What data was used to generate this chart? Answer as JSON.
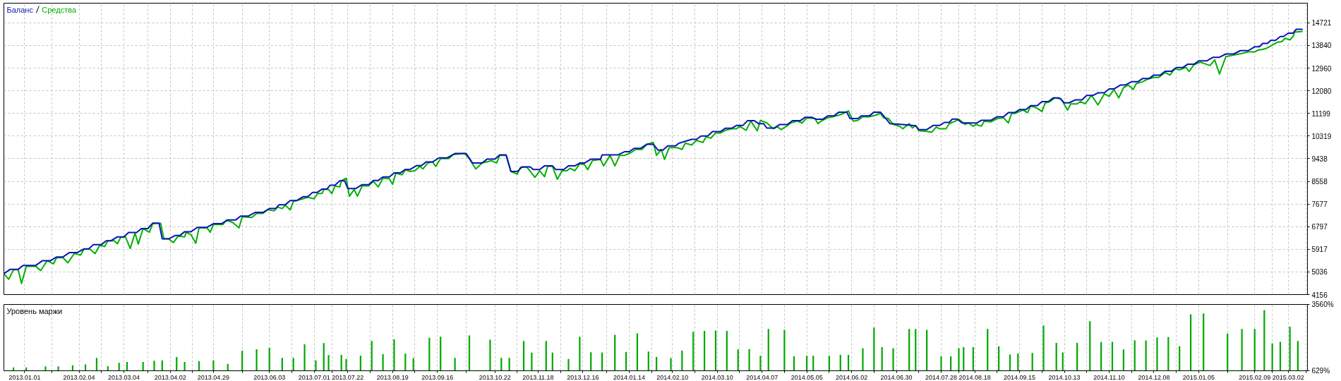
{
  "chart_data": [
    {
      "type": "line",
      "legend": "top left",
      "grid": true,
      "tick_labels": "y",
      "xlim": [
        "2012-12-19",
        "2015-03-14"
      ],
      "ylim": [
        4156,
        15485
      ],
      "yticks": [
        4156,
        5036,
        5917,
        6797,
        7677,
        8558,
        9438,
        10319,
        11199,
        12080,
        12960,
        13840,
        14721
      ],
      "xticks": [
        "2013-01-01",
        "2013-01-18",
        "2013-02-04",
        "2013-02-18",
        "2013-03-04",
        "2013-03-19",
        "2013-04-02",
        "2013-04-16",
        "2013-04-29",
        "2013-05-17",
        "2013-06-03",
        "2013-06-17",
        "2013-07-01",
        "2013-07-12",
        "2013-07-22",
        "2013-08-05",
        "2013-08-19",
        "2013-09-02",
        "2013-09-16",
        "2013-10-04",
        "2013-10-22",
        "2013-11-05",
        "2013-11-18",
        "2013-12-02",
        "2013-12-16",
        "2013-12-31",
        "2014-01-14",
        "2014-01-28",
        "2014-02-10",
        "2014-02-24",
        "2014-03-10",
        "2014-03-24",
        "2014-04-07",
        "2014-04-21",
        "2014-05-05",
        "2014-05-19",
        "2014-06-02",
        "2014-06-16",
        "2014-06-30",
        "2014-07-14",
        "2014-07-28",
        "2014-08-08",
        "2014-08-18",
        "2014-09-01",
        "2014-09-15",
        "2014-09-29",
        "2014-10-13",
        "2014-10-27",
        "2014-11-10",
        "2014-11-24",
        "2014-12-08",
        "2014-12-22",
        "2015-01-05",
        "2015-01-23",
        "2015-02-09",
        "2015-02-20",
        "2015-03-02",
        "2015-03-13"
      ],
      "series": [
        {
          "name": "Средства",
          "color": "#00b000",
          "x": [
            "2012-12-19",
            "2012-12-22",
            "2012-12-25",
            "2012-12-28",
            "2012-12-30",
            "2013-01-02",
            "2013-01-08",
            "2013-01-11",
            "2013-01-15",
            "2013-01-19",
            "2013-01-21",
            "2013-01-25",
            "2013-01-28",
            "2013-02-01",
            "2013-02-05",
            "2013-02-07",
            "2013-02-11",
            "2013-02-14",
            "2013-02-17",
            "2013-02-20",
            "2013-02-22",
            "2013-02-26",
            "2013-02-28",
            "2013-03-02",
            "2013-03-05",
            "2013-03-08",
            "2013-03-11",
            "2013-03-13",
            "2013-03-16",
            "2013-03-20",
            "2013-03-22",
            "2013-03-27",
            "2013-03-29",
            "2013-04-01",
            "2013-04-04",
            "2013-04-07",
            "2013-04-11",
            "2013-04-12",
            "2013-04-15",
            "2013-04-18",
            "2013-04-20",
            "2013-04-25",
            "2013-04-27",
            "2013-04-29",
            "2013-05-05",
            "2013-05-07",
            "2013-05-11",
            "2013-05-15",
            "2013-05-17",
            "2013-05-23",
            "2013-05-26",
            "2013-05-30",
            "2013-06-02",
            "2013-06-06",
            "2013-06-08",
            "2013-06-11",
            "2013-06-13",
            "2013-06-16",
            "2013-06-18",
            "2013-06-20",
            "2013-06-24",
            "2013-06-27",
            "2013-07-01",
            "2013-07-03",
            "2013-07-06",
            "2013-07-07",
            "2013-07-10",
            "2013-07-12",
            "2013-07-14",
            "2013-07-17",
            "2013-07-18",
            "2013-07-21",
            "2013-07-23",
            "2013-07-26",
            "2013-07-28",
            "2013-07-31",
            "2013-08-04",
            "2013-08-07",
            "2013-08-10",
            "2013-08-13",
            "2013-08-17",
            "2013-08-19",
            "2013-08-21",
            "2013-08-25",
            "2013-08-27",
            "2013-08-30",
            "2013-09-02",
            "2013-09-05",
            "2013-09-07",
            "2013-09-10",
            "2013-09-13",
            "2013-09-15",
            "2013-09-18",
            "2013-09-23",
            "2013-09-26",
            "2013-10-03",
            "2013-10-06",
            "2013-10-10",
            "2013-10-14",
            "2013-10-20",
            "2013-10-23",
            "2013-10-25",
            "2013-10-29",
            "2013-11-01",
            "2013-11-05",
            "2013-11-07",
            "2013-11-11",
            "2013-11-16",
            "2013-11-19",
            "2013-11-22",
            "2013-11-24",
            "2013-11-27",
            "2013-11-30",
            "2013-12-03",
            "2013-12-06",
            "2013-12-08",
            "2013-12-11",
            "2013-12-14",
            "2013-12-17",
            "2013-12-19",
            "2013-12-22",
            "2013-12-27",
            "2013-12-29",
            "2014-01-02",
            "2014-01-05",
            "2014-01-08",
            "2014-01-11",
            "2014-01-15",
            "2014-01-18",
            "2014-01-22",
            "2014-01-25",
            "2014-01-29",
            "2014-01-31",
            "2014-02-03",
            "2014-02-05",
            "2014-02-08",
            "2014-02-13",
            "2014-02-16",
            "2014-02-18",
            "2014-02-22",
            "2014-02-25",
            "2014-03-01",
            "2014-03-03",
            "2014-03-06",
            "2014-03-09",
            "2014-03-12",
            "2014-03-15",
            "2014-03-19",
            "2014-03-22",
            "2014-03-24",
            "2014-03-28",
            "2014-03-31",
            "2014-04-04",
            "2014-04-06",
            "2014-04-10",
            "2014-04-14",
            "2014-04-16",
            "2014-04-19",
            "2014-04-23",
            "2014-04-25",
            "2014-04-29",
            "2014-05-02",
            "2014-05-05",
            "2014-05-10",
            "2014-05-12",
            "2014-05-14",
            "2014-05-18",
            "2014-05-21",
            "2014-05-25",
            "2014-05-28",
            "2014-05-31",
            "2014-06-03",
            "2014-06-06",
            "2014-06-09",
            "2014-06-13",
            "2014-06-17",
            "2014-06-20",
            "2014-06-22",
            "2014-06-25",
            "2014-06-28",
            "2014-07-02",
            "2014-07-04",
            "2014-07-08",
            "2014-07-10",
            "2014-07-12",
            "2014-07-14",
            "2014-07-19",
            "2014-07-22",
            "2014-07-25",
            "2014-07-27",
            "2014-07-31",
            "2014-08-02",
            "2014-08-06",
            "2014-08-08",
            "2014-08-12",
            "2014-08-14",
            "2014-08-17",
            "2014-08-19",
            "2014-08-22",
            "2014-08-24",
            "2014-08-28",
            "2014-09-01",
            "2014-09-05",
            "2014-09-08",
            "2014-09-10",
            "2014-09-12",
            "2014-09-17",
            "2014-09-20",
            "2014-09-22",
            "2014-09-26",
            "2014-09-29",
            "2014-10-01",
            "2014-10-04",
            "2014-10-07",
            "2014-10-11",
            "2014-10-15",
            "2014-10-17",
            "2014-10-21",
            "2014-10-23",
            "2014-10-26",
            "2014-10-30",
            "2014-11-03",
            "2014-11-07",
            "2014-11-10",
            "2014-11-13",
            "2014-11-16",
            "2014-11-19",
            "2014-11-22",
            "2014-11-25",
            "2014-11-27",
            "2014-12-01",
            "2014-12-04",
            "2014-12-08",
            "2014-12-11",
            "2014-12-15",
            "2014-12-18",
            "2014-12-21",
            "2014-12-24",
            "2014-12-28",
            "2014-12-30",
            "2015-01-02",
            "2015-01-06",
            "2015-01-12",
            "2015-01-15",
            "2015-01-18",
            "2015-01-22",
            "2015-01-28",
            "2015-02-01",
            "2015-02-05",
            "2015-02-09",
            "2015-02-11",
            "2015-02-14",
            "2015-02-16",
            "2015-02-19",
            "2015-02-21",
            "2015-02-23",
            "2015-02-26",
            "2015-02-28",
            "2015-03-03",
            "2015-03-05",
            "2015-03-06",
            "2015-03-11"
          ],
          "values": [
            4970,
            4750,
            5120,
            5120,
            4590,
            5250,
            5250,
            5090,
            5470,
            5350,
            5590,
            5590,
            5390,
            5750,
            5690,
            5920,
            5920,
            5750,
            6080,
            6020,
            6250,
            6250,
            6130,
            6380,
            6400,
            5950,
            6550,
            6120,
            6720,
            6580,
            6910,
            6930,
            6330,
            6320,
            6180,
            6430,
            6400,
            6580,
            6480,
            6150,
            6750,
            6750,
            6580,
            6880,
            6880,
            7050,
            6960,
            6750,
            7180,
            7150,
            7310,
            7310,
            7460,
            7410,
            7560,
            7500,
            7630,
            7450,
            7780,
            7810,
            7880,
            7940,
            7880,
            8080,
            8090,
            8240,
            8240,
            8080,
            8380,
            8340,
            8580,
            8680,
            7980,
            8240,
            7980,
            8380,
            8380,
            8560,
            8340,
            8680,
            8660,
            8440,
            8870,
            8810,
            9010,
            8940,
            8970,
            9140,
            9040,
            9270,
            9310,
            9140,
            9440,
            9440,
            9600,
            9640,
            9440,
            9040,
            9270,
            9360,
            9270,
            9570,
            9570,
            8940,
            8840,
            9110,
            9110,
            8710,
            8970,
            8740,
            9140,
            9140,
            8640,
            8970,
            8970,
            9070,
            8970,
            9240,
            9210,
            9010,
            9370,
            9410,
            9160,
            9570,
            9160,
            9570,
            9570,
            9670,
            9800,
            9800,
            10000,
            10070,
            9570,
            9800,
            9410,
            9870,
            9870,
            9800,
            10040,
            9970,
            10150,
            10070,
            10290,
            10240,
            10440,
            10440,
            10540,
            10600,
            10600,
            10700,
            10540,
            10900,
            10520,
            10930,
            10830,
            10600,
            10700,
            10570,
            10730,
            10830,
            10900,
            10830,
            11030,
            11000,
            10800,
            10900,
            11030,
            11070,
            11130,
            11200,
            11300,
            10900,
            10930,
            11070,
            11070,
            11130,
            11200,
            11030,
            11000,
            10770,
            10700,
            10600,
            10800,
            10630,
            10730,
            10530,
            10500,
            10470,
            10670,
            10600,
            10600,
            10800,
            10900,
            10970,
            10770,
            10830,
            10700,
            10770,
            10700,
            10900,
            10870,
            11000,
            11030,
            10830,
            11200,
            11200,
            11330,
            11230,
            11500,
            11400,
            11270,
            11600,
            11660,
            11800,
            11760,
            11330,
            11570,
            11570,
            11660,
            11570,
            11900,
            11530,
            11960,
            11860,
            12130,
            11800,
            12200,
            12300,
            12130,
            12360,
            12430,
            12530,
            12600,
            12600,
            12790,
            12690,
            12930,
            12890,
            12990,
            12830,
            13090,
            13190,
            13060,
            13280,
            12730,
            13410,
            13480,
            13530,
            13590,
            13590,
            13660,
            13690,
            13720,
            13820,
            13890,
            13960,
            13990,
            14120,
            14060,
            14190,
            14360,
            14390
          ]
        },
        {
          "name": "Баланс",
          "color": "#0a14b4",
          "x": [
            "2012-12-19",
            "2012-12-23",
            "2012-12-28",
            "2012-12-31",
            "2013-01-08",
            "2013-01-12",
            "2013-01-17",
            "2013-01-21",
            "2013-01-25",
            "2013-01-29",
            "2013-02-03",
            "2013-02-07",
            "2013-02-10",
            "2013-02-13",
            "2013-02-18",
            "2013-02-21",
            "2013-02-24",
            "2013-02-28",
            "2013-03-04",
            "2013-03-07",
            "2013-03-12",
            "2013-03-15",
            "2013-03-19",
            "2013-03-22",
            "2013-03-26",
            "2013-03-28",
            "2013-04-01",
            "2013-04-05",
            "2013-04-08",
            "2013-04-11",
            "2013-04-15",
            "2013-04-19",
            "2013-04-25",
            "2013-04-29",
            "2013-05-04",
            "2013-05-08",
            "2013-05-13",
            "2013-05-16",
            "2013-05-21",
            "2013-05-25",
            "2013-05-30",
            "2013-06-03",
            "2013-06-07",
            "2013-06-09",
            "2013-06-13",
            "2013-06-16",
            "2013-06-20",
            "2013-06-24",
            "2013-06-27",
            "2013-06-30",
            "2013-07-03",
            "2013-07-06",
            "2013-07-09",
            "2013-07-11",
            "2013-07-14",
            "2013-07-17",
            "2013-07-20",
            "2013-07-22",
            "2013-07-27",
            "2013-07-31",
            "2013-08-04",
            "2013-08-07",
            "2013-08-10",
            "2013-08-13",
            "2013-08-17",
            "2013-08-20",
            "2013-08-24",
            "2013-08-27",
            "2013-08-30",
            "2013-09-03",
            "2013-09-06",
            "2013-09-09",
            "2013-09-13",
            "2013-09-17",
            "2013-09-22",
            "2013-09-27",
            "2013-10-04",
            "2013-10-08",
            "2013-10-14",
            "2013-10-17",
            "2013-10-22",
            "2013-10-25",
            "2013-10-29",
            "2013-11-01",
            "2013-11-05",
            "2013-11-08",
            "2013-11-13",
            "2013-11-15",
            "2013-11-19",
            "2013-11-22",
            "2013-11-27",
            "2013-11-29",
            "2013-12-04",
            "2013-12-07",
            "2013-12-11",
            "2013-12-14",
            "2013-12-17",
            "2013-12-21",
            "2013-12-27",
            "2013-12-28",
            "2014-01-07",
            "2014-01-11",
            "2014-01-14",
            "2014-01-17",
            "2014-01-21",
            "2014-01-25",
            "2014-01-29",
            "2014-02-01",
            "2014-02-04",
            "2014-02-07",
            "2014-02-12",
            "2014-02-14",
            "2014-02-22",
            "2014-02-25",
            "2014-02-28",
            "2014-03-04",
            "2014-03-07",
            "2014-03-12",
            "2014-03-15",
            "2014-03-19",
            "2014-03-22",
            "2014-03-26",
            "2014-03-29",
            "2014-04-02",
            "2014-04-05",
            "2014-04-08",
            "2014-04-10",
            "2014-04-15",
            "2014-04-18",
            "2014-04-23",
            "2014-04-26",
            "2014-05-01",
            "2014-05-04",
            "2014-05-08",
            "2014-05-11",
            "2014-05-15",
            "2014-05-18",
            "2014-05-22",
            "2014-05-25",
            "2014-05-30",
            "2014-06-01",
            "2014-06-06",
            "2014-06-08",
            "2014-06-13",
            "2014-06-16",
            "2014-06-20",
            "2014-06-23",
            "2014-06-26",
            "2014-07-04",
            "2014-07-12",
            "2014-07-14",
            "2014-07-19",
            "2014-07-23",
            "2014-07-27",
            "2014-07-30",
            "2014-08-02",
            "2014-08-04",
            "2014-08-07",
            "2014-08-10",
            "2014-08-17",
            "2014-08-19",
            "2014-08-22",
            "2014-08-28",
            "2014-09-01",
            "2014-09-05",
            "2014-09-08",
            "2014-09-12",
            "2014-09-15",
            "2014-09-19",
            "2014-09-22",
            "2014-09-26",
            "2014-09-29",
            "2014-10-03",
            "2014-10-06",
            "2014-10-10",
            "2014-10-13",
            "2014-10-16",
            "2014-10-20",
            "2014-10-24",
            "2014-10-27",
            "2014-10-31",
            "2014-11-03",
            "2014-11-07",
            "2014-11-10",
            "2014-11-13",
            "2014-11-17",
            "2014-11-20",
            "2014-11-24",
            "2014-11-28",
            "2014-12-01",
            "2014-12-05",
            "2014-12-08",
            "2014-12-12",
            "2014-12-15",
            "2014-12-19",
            "2014-12-22",
            "2014-12-26",
            "2014-12-29",
            "2015-01-02",
            "2015-01-05",
            "2015-01-10",
            "2015-01-14",
            "2015-01-18",
            "2015-01-22",
            "2015-01-27",
            "2015-01-31",
            "2015-02-05",
            "2015-02-09",
            "2015-02-12",
            "2015-02-14",
            "2015-02-17",
            "2015-02-19",
            "2015-02-22",
            "2015-02-25",
            "2015-02-27",
            "2015-03-02",
            "2015-03-05",
            "2015-03-07",
            "2015-03-11"
          ],
          "values": [
            4970,
            5140,
            5140,
            5290,
            5290,
            5470,
            5470,
            5620,
            5620,
            5790,
            5790,
            5930,
            5930,
            6100,
            6100,
            6250,
            6250,
            6400,
            6400,
            6570,
            6570,
            6720,
            6720,
            6930,
            6930,
            6320,
            6320,
            6450,
            6450,
            6600,
            6600,
            6770,
            6770,
            6910,
            6910,
            7060,
            7060,
            7210,
            7210,
            7350,
            7350,
            7500,
            7500,
            7650,
            7650,
            7810,
            7810,
            7960,
            7960,
            8130,
            8130,
            8260,
            8260,
            8410,
            8410,
            8580,
            8580,
            8280,
            8280,
            8430,
            8430,
            8590,
            8590,
            8730,
            8730,
            8890,
            8890,
            9020,
            9020,
            9170,
            9170,
            9310,
            9310,
            9470,
            9470,
            9640,
            9640,
            9270,
            9270,
            9420,
            9420,
            9590,
            9590,
            8940,
            8940,
            9120,
            9120,
            9020,
            9020,
            9160,
            9160,
            9020,
            9020,
            9160,
            9160,
            9270,
            9270,
            9420,
            9420,
            9590,
            9590,
            9710,
            9710,
            9840,
            9840,
            10000,
            10000,
            9770,
            9770,
            9940,
            9940,
            10040,
            10190,
            10190,
            10320,
            10320,
            10490,
            10490,
            10620,
            10620,
            10730,
            10730,
            10920,
            10920,
            10800,
            10800,
            10630,
            10630,
            10770,
            10770,
            10920,
            10920,
            11050,
            11050,
            10970,
            10970,
            11100,
            11100,
            11250,
            11250,
            11000,
            11000,
            11100,
            11100,
            11250,
            11250,
            11030,
            10800,
            10770,
            10720,
            10570,
            10570,
            10730,
            10730,
            10850,
            10850,
            10980,
            10980,
            10830,
            10830,
            10820,
            10930,
            10930,
            11070,
            11070,
            11230,
            11230,
            11350,
            11350,
            11500,
            11500,
            11660,
            11660,
            11800,
            11800,
            11610,
            11610,
            11730,
            11730,
            11900,
            11900,
            12000,
            12000,
            12150,
            12150,
            12300,
            12300,
            12430,
            12430,
            12560,
            12560,
            12690,
            12690,
            12840,
            12840,
            12980,
            12980,
            13110,
            13110,
            13240,
            13240,
            13380,
            13380,
            13510,
            13510,
            13640,
            13640,
            13790,
            13790,
            13920,
            13920,
            14040,
            14040,
            14190,
            14190,
            14320,
            14320,
            14470,
            14470
          ]
        }
      ]
    },
    {
      "type": "bar",
      "title": "Уровень маржи",
      "grid": "x",
      "color": "#00a800",
      "xlim": [
        "2012-12-19",
        "2015-03-14"
      ],
      "ylim": [
        629,
        3560
      ],
      "yticks": [
        {
          "value": 629,
          "label": "629%"
        },
        {
          "value": 3560,
          "label": "3560%"
        }
      ],
      "xticks": [
        {
          "value": "2013-01-01",
          "label": "2013.01.01"
        },
        {
          "value": "2013-01-18",
          "label": null
        },
        {
          "value": "2013-02-04",
          "label": "2013.02.04"
        },
        {
          "value": "2013-02-18",
          "label": null
        },
        {
          "value": "2013-03-04",
          "label": "2013.03.04"
        },
        {
          "value": "2013-03-19",
          "label": null
        },
        {
          "value": "2013-04-02",
          "label": "2013.04.02"
        },
        {
          "value": "2013-04-16",
          "label": null
        },
        {
          "value": "2013-04-29",
          "label": "2013.04.29"
        },
        {
          "value": "2013-05-17",
          "label": null
        },
        {
          "value": "2013-06-03",
          "label": "2013.06.03"
        },
        {
          "value": "2013-06-17",
          "label": null
        },
        {
          "value": "2013-07-01",
          "label": "2013.07.01"
        },
        {
          "value": "2013-07-12",
          "label": null
        },
        {
          "value": "2013-07-22",
          "label": "2013.07.22"
        },
        {
          "value": "2013-08-05",
          "label": null
        },
        {
          "value": "2013-08-19",
          "label": "2013.08.19"
        },
        {
          "value": "2013-09-02",
          "label": null
        },
        {
          "value": "2013-09-16",
          "label": "2013.09.16"
        },
        {
          "value": "2013-10-04",
          "label": null
        },
        {
          "value": "2013-10-22",
          "label": "2013.10.22"
        },
        {
          "value": "2013-11-05",
          "label": null
        },
        {
          "value": "2013-11-18",
          "label": "2013.11.18"
        },
        {
          "value": "2013-12-02",
          "label": null
        },
        {
          "value": "2013-12-16",
          "label": "2013.12.16"
        },
        {
          "value": "2013-12-31",
          "label": null
        },
        {
          "value": "2014-01-14",
          "label": "2014.01.14"
        },
        {
          "value": "2014-01-28",
          "label": null
        },
        {
          "value": "2014-02-10",
          "label": "2014.02.10"
        },
        {
          "value": "2014-02-24",
          "label": null
        },
        {
          "value": "2014-03-10",
          "label": "2014.03.10"
        },
        {
          "value": "2014-03-24",
          "label": null
        },
        {
          "value": "2014-04-07",
          "label": "2014.04.07"
        },
        {
          "value": "2014-04-21",
          "label": null
        },
        {
          "value": "2014-05-05",
          "label": "2014.05.05"
        },
        {
          "value": "2014-05-19",
          "label": null
        },
        {
          "value": "2014-06-02",
          "label": "2014.06.02"
        },
        {
          "value": "2014-06-16",
          "label": null
        },
        {
          "value": "2014-06-30",
          "label": "2014.06.30"
        },
        {
          "value": "2014-07-14",
          "label": null
        },
        {
          "value": "2014-07-28",
          "label": "2014.07.28"
        },
        {
          "value": "2014-08-08",
          "label": null
        },
        {
          "value": "2014-08-18",
          "label": "2014.08.18"
        },
        {
          "value": "2014-09-01",
          "label": null
        },
        {
          "value": "2014-09-15",
          "label": "2014.09.15"
        },
        {
          "value": "2014-09-29",
          "label": null
        },
        {
          "value": "2014-10-13",
          "label": "2014.10.13"
        },
        {
          "value": "2014-10-27",
          "label": null
        },
        {
          "value": "2014-11-10",
          "label": "2014.11.10"
        },
        {
          "value": "2014-11-24",
          "label": null
        },
        {
          "value": "2014-12-08",
          "label": "2014.12.08"
        },
        {
          "value": "2014-12-22",
          "label": null
        },
        {
          "value": "2015-01-05",
          "label": "2015.01.05"
        },
        {
          "value": "2015-01-23",
          "label": null
        },
        {
          "value": "2015-02-09",
          "label": "2015.02.09"
        },
        {
          "value": "2015-02-20",
          "label": null
        },
        {
          "value": "2015-03-02",
          "label": "2015.03.02"
        },
        {
          "value": "2015-03-13",
          "label": null
        }
      ],
      "x": [
        "2012-12-25",
        "2013-01-02",
        "2013-01-14",
        "2013-01-22",
        "2013-01-31",
        "2013-02-08",
        "2013-02-15",
        "2013-02-22",
        "2013-03-01",
        "2013-03-06",
        "2013-03-16",
        "2013-03-23",
        "2013-03-28",
        "2013-04-06",
        "2013-04-11",
        "2013-04-20",
        "2013-04-29",
        "2013-05-08",
        "2013-05-17",
        "2013-05-26",
        "2013-06-03",
        "2013-06-11",
        "2013-06-18",
        "2013-06-25",
        "2013-07-02",
        "2013-07-07",
        "2013-07-10",
        "2013-07-18",
        "2013-07-21",
        "2013-07-30",
        "2013-08-06",
        "2013-08-13",
        "2013-08-20",
        "2013-08-27",
        "2013-09-01",
        "2013-09-11",
        "2013-09-18",
        "2013-09-27",
        "2013-10-06",
        "2013-10-19",
        "2013-10-26",
        "2013-10-31",
        "2013-11-09",
        "2013-11-14",
        "2013-11-23",
        "2013-11-27",
        "2013-12-07",
        "2013-12-14",
        "2013-12-21",
        "2013-12-28",
        "2014-01-05",
        "2014-01-12",
        "2014-01-19",
        "2014-01-26",
        "2014-01-31",
        "2014-02-09",
        "2014-02-16",
        "2014-02-23",
        "2014-03-02",
        "2014-03-09",
        "2014-03-16",
        "2014-03-23",
        "2014-03-30",
        "2014-04-06",
        "2014-04-11",
        "2014-04-21",
        "2014-04-27",
        "2014-05-05",
        "2014-05-09",
        "2014-05-19",
        "2014-05-26",
        "2014-05-31",
        "2014-06-09",
        "2014-06-16",
        "2014-06-21",
        "2014-06-28",
        "2014-07-08",
        "2014-07-12",
        "2014-07-19",
        "2014-07-28",
        "2014-08-03",
        "2014-08-08",
        "2014-08-11",
        "2014-08-17",
        "2014-08-26",
        "2014-09-02",
        "2014-09-09",
        "2014-09-14",
        "2014-09-23",
        "2014-09-30",
        "2014-10-08",
        "2014-10-12",
        "2014-10-21",
        "2014-10-29",
        "2014-11-05",
        "2014-11-12",
        "2014-11-19",
        "2014-11-26",
        "2014-12-03",
        "2014-12-10",
        "2014-12-17",
        "2014-12-24",
        "2014-12-31",
        "2015-01-08",
        "2015-01-23",
        "2015-02-01",
        "2015-02-09",
        "2015-02-15",
        "2015-02-20",
        "2015-02-25",
        "2015-03-03",
        "2015-03-08"
      ],
      "values": [
        780,
        780,
        820,
        820,
        870,
        910,
        1200,
        830,
        980,
        1020,
        1020,
        1070,
        1090,
        1240,
        1020,
        1060,
        1090,
        930,
        1520,
        1580,
        1650,
        1200,
        1200,
        1800,
        1090,
        1850,
        1320,
        1330,
        1150,
        1300,
        1950,
        1370,
        2020,
        1390,
        1190,
        2090,
        2130,
        1200,
        2190,
        2000,
        1200,
        1200,
        1950,
        1430,
        1950,
        1430,
        1150,
        2130,
        1450,
        1430,
        2220,
        1460,
        2280,
        1480,
        1240,
        1190,
        1520,
        2350,
        2390,
        2410,
        2390,
        1570,
        1590,
        1290,
        2480,
        2440,
        1270,
        1290,
        1290,
        1290,
        1330,
        1330,
        1630,
        2540,
        1670,
        1630,
        2480,
        2480,
        2440,
        1270,
        1270,
        1630,
        1670,
        1670,
        2480,
        1710,
        1350,
        1390,
        1420,
        2630,
        1860,
        1440,
        1860,
        2820,
        1900,
        1910,
        1570,
        1970,
        1970,
        2100,
        2120,
        1710,
        3120,
        3160,
        2270,
        2480,
        2480,
        3310,
        1840,
        1910,
        2580,
        1950
      ]
    }
  ]
}
